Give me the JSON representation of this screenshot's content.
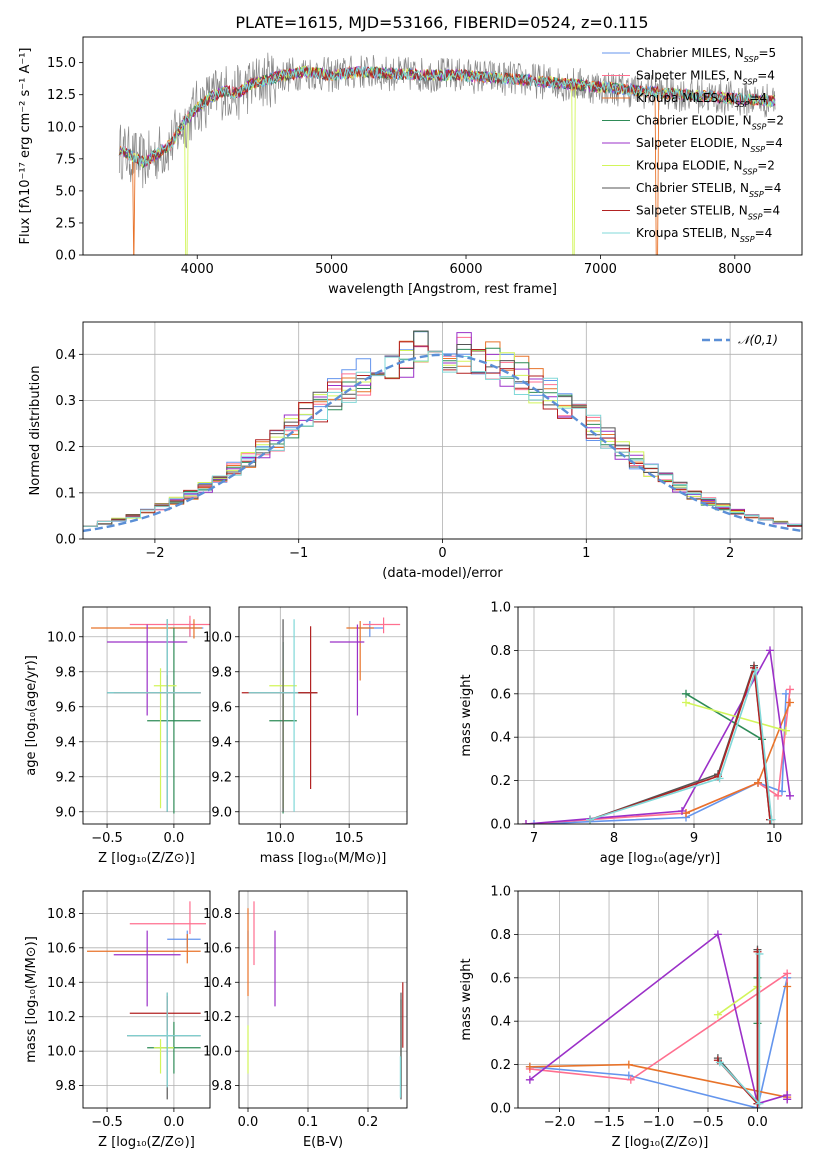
{
  "figure_title": "PLATE=1615, MJD=53166, FIBERID=0524, z=0.115",
  "colors": {
    "Chabrier MILES": "#6495ed",
    "Salpeter MILES": "#ff6f8f",
    "Kroupa MILES": "#e8732a",
    "Chabrier ELODIE": "#2e8b57",
    "Salpeter ELODIE": "#9b30c8",
    "Kroupa ELODIE": "#d2f55a",
    "Chabrier STELIB": "#555555",
    "Salpeter STELIB": "#b22222",
    "Kroupa STELIB": "#80d8d8",
    "gaussian": "#5b8fd6"
  },
  "chart_data": [
    {
      "id": "spectrum",
      "type": "line",
      "xlabel": "wavelength [Angstrom, rest frame]",
      "ylabel": "Flux [fλ10⁻¹⁷ erg cm⁻² s⁻¹ A⁻¹]",
      "xlim": [
        3150,
        8500
      ],
      "ylim": [
        0,
        17
      ],
      "xticks": [
        4000,
        5000,
        6000,
        7000,
        8000
      ],
      "yticks": [
        0.0,
        2.5,
        5.0,
        7.5,
        10.0,
        12.5,
        15.0
      ],
      "legend_position": "right",
      "legend": [
        {
          "name": "Chabrier MILES",
          "nssp": "5"
        },
        {
          "name": "Salpeter MILES",
          "nssp": "4"
        },
        {
          "name": "Kroupa MILES",
          "nssp": "4"
        },
        {
          "name": "Chabrier ELODIE",
          "nssp": "2"
        },
        {
          "name": "Salpeter ELODIE",
          "nssp": "4"
        },
        {
          "name": "Kroupa ELODIE",
          "nssp": "2"
        },
        {
          "name": "Chabrier STELIB",
          "nssp": "4"
        },
        {
          "name": "Salpeter STELIB",
          "nssp": "4"
        },
        {
          "name": "Kroupa STELIB",
          "nssp": "4"
        }
      ],
      "continuum": {
        "x": [
          3420,
          3500,
          3600,
          3700,
          3800,
          3900,
          4000,
          4100,
          4200,
          4300,
          4400,
          4500,
          4600,
          4800,
          5000,
          5200,
          5500,
          6000,
          6500,
          7000,
          7500,
          8000,
          8300
        ],
        "y": [
          8.2,
          7.8,
          7.2,
          7.9,
          8.6,
          10.3,
          11.5,
          12.3,
          12.8,
          12.6,
          13.3,
          13.6,
          13.9,
          14.3,
          14.0,
          14.3,
          14.1,
          14.0,
          13.6,
          13.1,
          12.6,
          12.2,
          12.0
        ]
      },
      "data_spectrum": {
        "x_range": [
          3420,
          8300
        ],
        "noise": 1.4
      },
      "model_drops": [
        {
          "model": "Kroupa MILES",
          "x": 3530
        },
        {
          "model": "Kroupa ELODIE",
          "x": 3920
        },
        {
          "model": "Kroupa ELODIE",
          "x": 6800
        },
        {
          "model": "Kroupa MILES",
          "x": 7420
        }
      ],
      "grid": false
    },
    {
      "id": "residuals",
      "type": "histogram",
      "xlabel": "(data-model)/error",
      "ylabel": "Normed distribution",
      "xlim": [
        -2.5,
        2.5
      ],
      "ylim": [
        0,
        0.47
      ],
      "xticks": [
        -2,
        -1,
        0,
        1,
        2
      ],
      "yticks": [
        0.0,
        0.1,
        0.2,
        0.3,
        0.4
      ],
      "bin_width": 0.1,
      "gaussian_label": "𝒩(0,1)",
      "legend_position": "top-right",
      "grid": true
    },
    {
      "id": "age_vs_Z",
      "type": "errorbar",
      "xlabel": "Z [log₁₀(Z/Z⊙)]",
      "ylabel": "age  [log₁₀(age/yr)]",
      "xlim": [
        -0.68,
        0.27
      ],
      "ylim": [
        8.93,
        10.17
      ],
      "xticks": [
        -0.5,
        0.0
      ],
      "yticks": [
        9.0,
        9.2,
        9.4,
        9.6,
        9.8,
        10.0
      ],
      "grid": true,
      "points": [
        {
          "model": "Chabrier MILES",
          "x": 0.12,
          "y": 10.05,
          "xerr": [
            0.15,
            0.1
          ],
          "yerr": [
            0.05,
            0.04
          ]
        },
        {
          "model": "Salpeter MILES",
          "x": 0.12,
          "y": 10.07,
          "xerr": [
            0.45,
            0.2
          ],
          "yerr": [
            0.07,
            0.05
          ]
        },
        {
          "model": "Kroupa MILES",
          "x": 0.15,
          "y": 10.05,
          "xerr": [
            0.77,
            0.06
          ],
          "yerr": [
            0.06,
            0.05
          ]
        },
        {
          "model": "Chabrier ELODIE",
          "x": 0.0,
          "y": 9.52,
          "xerr": [
            0.2,
            0.2
          ],
          "yerr": [
            0.53,
            0.53
          ]
        },
        {
          "model": "Salpeter ELODIE",
          "x": -0.2,
          "y": 9.97,
          "xerr": [
            0.3,
            0.3
          ],
          "yerr": [
            0.42,
            0.1
          ]
        },
        {
          "model": "Kroupa ELODIE",
          "x": -0.1,
          "y": 9.72,
          "xerr": [
            0.05,
            0.12
          ],
          "yerr": [
            0.7,
            0.1
          ]
        },
        {
          "model": "Chabrier STELIB",
          "x": -0.05,
          "y": 9.68,
          "xerr": [
            0.45,
            0.25
          ],
          "yerr": [
            0.68,
            0.42
          ]
        },
        {
          "model": "Salpeter STELIB",
          "x": -0.05,
          "y": 9.68,
          "xerr": [
            0.4,
            0.25
          ],
          "yerr": [
            0.1,
            0.1
          ]
        },
        {
          "model": "Kroupa STELIB",
          "x": -0.05,
          "y": 9.68,
          "xerr": [
            0.45,
            0.25
          ],
          "yerr": [
            0.68,
            0.42
          ]
        }
      ]
    },
    {
      "id": "age_vs_mass",
      "type": "errorbar",
      "xlabel": "mass [log₁₀(M/M⊙)]",
      "ylabel": "",
      "xlim": [
        9.7,
        10.92
      ],
      "ylim": [
        8.93,
        10.17
      ],
      "xticks": [
        10.0,
        10.5
      ],
      "yticks": [
        9.0,
        9.2,
        9.4,
        9.6,
        9.8,
        10.0
      ],
      "grid": true,
      "points": [
        {
          "model": "Chabrier MILES",
          "x": 10.65,
          "y": 10.05,
          "xerr": [
            0.1,
            0.1
          ],
          "yerr": [
            0.05,
            0.04
          ]
        },
        {
          "model": "Salpeter MILES",
          "x": 10.75,
          "y": 10.07,
          "xerr": [
            0.15,
            0.12
          ],
          "yerr": [
            0.05,
            0.04
          ]
        },
        {
          "model": "Kroupa MILES",
          "x": 10.58,
          "y": 10.05,
          "xerr": [
            0.1,
            0.1
          ],
          "yerr": [
            0.3,
            0.04
          ]
        },
        {
          "model": "Chabrier ELODIE",
          "x": 10.02,
          "y": 9.52,
          "xerr": [
            0.1,
            0.1
          ],
          "yerr": [
            0.53,
            0.45
          ]
        },
        {
          "model": "Salpeter ELODIE",
          "x": 10.56,
          "y": 9.97,
          "xerr": [
            0.2,
            0.05
          ],
          "yerr": [
            0.42,
            0.1
          ]
        },
        {
          "model": "Kroupa ELODIE",
          "x": 10.02,
          "y": 9.72,
          "xerr": [
            0.1,
            0.1
          ],
          "yerr": [
            0.7,
            0.1
          ]
        },
        {
          "model": "Chabrier STELIB",
          "x": 10.02,
          "y": 9.68,
          "xerr": [
            0.25,
            0.25
          ],
          "yerr": [
            0.68,
            0.42
          ]
        },
        {
          "model": "Salpeter STELIB",
          "x": 10.22,
          "y": 9.68,
          "xerr": [
            0.5,
            0.05
          ],
          "yerr": [
            0.55,
            0.38
          ]
        },
        {
          "model": "Kroupa STELIB",
          "x": 10.1,
          "y": 9.68,
          "xerr": [
            0.33,
            0.03
          ],
          "yerr": [
            0.68,
            0.42
          ]
        }
      ]
    },
    {
      "id": "weight_vs_age",
      "type": "line",
      "xlabel": "age  [log₁₀(age/yr)]",
      "ylabel": "mass weight",
      "xlim": [
        6.8,
        10.35
      ],
      "ylim": [
        0,
        1
      ],
      "xticks": [
        7,
        8,
        9,
        10
      ],
      "yticks": [
        0.0,
        0.2,
        0.4,
        0.6,
        0.8,
        1.0
      ],
      "grid": true,
      "series": [
        {
          "model": "Chabrier MILES",
          "x": [
            7.0,
            8.9,
            9.8,
            10.1,
            10.15
          ],
          "y": [
            0.0,
            0.03,
            0.19,
            0.15,
            0.6
          ]
        },
        {
          "model": "Salpeter MILES",
          "x": [
            6.9,
            8.9,
            9.8,
            10.05,
            10.2
          ],
          "y": [
            0.0,
            0.05,
            0.19,
            0.13,
            0.62
          ]
        },
        {
          "model": "Kroupa MILES",
          "x": [
            8.9,
            9.8,
            10.2
          ],
          "y": [
            0.05,
            0.19,
            0.56
          ]
        },
        {
          "model": "Chabrier ELODIE",
          "x": [
            8.9,
            9.85
          ],
          "y": [
            0.6,
            0.39
          ]
        },
        {
          "model": "Salpeter ELODIE",
          "x": [
            6.9,
            8.85,
            9.95,
            10.2
          ],
          "y": [
            0.0,
            0.06,
            0.8,
            0.13
          ]
        },
        {
          "model": "Kroupa ELODIE",
          "x": [
            8.9,
            10.15
          ],
          "y": [
            0.56,
            0.43
          ]
        },
        {
          "model": "Chabrier STELIB",
          "x": [
            7.7,
            9.3,
            9.75,
            9.95
          ],
          "y": [
            0.02,
            0.23,
            0.73,
            0.02
          ]
        },
        {
          "model": "Salpeter STELIB",
          "x": [
            7.7,
            9.3,
            9.75,
            9.95
          ],
          "y": [
            0.02,
            0.22,
            0.72,
            0.02
          ]
        },
        {
          "model": "Kroupa STELIB",
          "x": [
            7.7,
            9.32,
            9.77,
            9.97
          ],
          "y": [
            0.02,
            0.21,
            0.71,
            0.02
          ]
        }
      ]
    },
    {
      "id": "mass_vs_Z",
      "type": "errorbar",
      "xlabel": "Z [log₁₀(Z/Z⊙)]",
      "ylabel": "mass [log₁₀(M/M⊙)]",
      "xlim": [
        -0.68,
        0.27
      ],
      "ylim": [
        9.67,
        10.93
      ],
      "xticks": [
        -0.5,
        0.0
      ],
      "yticks": [
        9.8,
        10.0,
        10.2,
        10.4,
        10.6,
        10.8
      ],
      "grid": true,
      "points": [
        {
          "model": "Chabrier MILES",
          "x": 0.1,
          "y": 10.65,
          "xerr": [
            0.15,
            0.1
          ],
          "yerr": [
            0.05,
            0.05
          ]
        },
        {
          "model": "Salpeter MILES",
          "x": 0.12,
          "y": 10.74,
          "xerr": [
            0.45,
            0.12
          ],
          "yerr": [
            0.06,
            0.13
          ]
        },
        {
          "model": "Kroupa MILES",
          "x": 0.1,
          "y": 10.58,
          "xerr": [
            0.75,
            0.1
          ],
          "yerr": [
            0.07,
            0.1
          ]
        },
        {
          "model": "Chabrier ELODIE",
          "x": 0.0,
          "y": 10.02,
          "xerr": [
            0.2,
            0.2
          ],
          "yerr": [
            0.15,
            0.15
          ]
        },
        {
          "model": "Salpeter ELODIE",
          "x": -0.2,
          "y": 10.56,
          "xerr": [
            0.25,
            0.25
          ],
          "yerr": [
            0.3,
            0.14
          ]
        },
        {
          "model": "Kroupa ELODIE",
          "x": -0.1,
          "y": 10.02,
          "xerr": [
            0.05,
            0.1
          ],
          "yerr": [
            0.15,
            0.05
          ]
        },
        {
          "model": "Chabrier STELIB",
          "x": -0.05,
          "y": 10.09,
          "xerr": [
            0.3,
            0.25
          ],
          "yerr": [
            0.37,
            0.25
          ]
        },
        {
          "model": "Salpeter STELIB",
          "x": -0.05,
          "y": 10.22,
          "xerr": [
            0.28,
            0.25
          ],
          "yerr": [
            0.1,
            0.1
          ]
        },
        {
          "model": "Kroupa STELIB",
          "x": -0.05,
          "y": 10.09,
          "xerr": [
            0.3,
            0.25
          ],
          "yerr": [
            0.3,
            0.25
          ]
        }
      ]
    },
    {
      "id": "mass_vs_EBV",
      "type": "errorbar",
      "xlabel": "E(B-V)",
      "ylabel": "",
      "xlim": [
        -0.015,
        0.265
      ],
      "ylim": [
        9.67,
        10.93
      ],
      "xticks": [
        0.0,
        0.1,
        0.2
      ],
      "yticks": [
        9.8,
        10.0,
        10.2,
        10.4,
        10.6,
        10.8
      ],
      "grid": true,
      "points": [
        {
          "model": "Chabrier MILES",
          "x": 0.0,
          "y": 10.65,
          "yerr": [
            0.05,
            0.05
          ]
        },
        {
          "model": "Salpeter MILES",
          "x": 0.01,
          "y": 10.74,
          "yerr": [
            0.24,
            0.13
          ]
        },
        {
          "model": "Kroupa MILES",
          "x": 0.0,
          "y": 10.58,
          "yerr": [
            0.26,
            0.25
          ]
        },
        {
          "model": "Chabrier ELODIE",
          "x": 0.255,
          "y": 10.1,
          "yerr": [
            0.3,
            0.2
          ]
        },
        {
          "model": "Salpeter ELODIE",
          "x": 0.045,
          "y": 10.56,
          "yerr": [
            0.3,
            0.14
          ]
        },
        {
          "model": "Kroupa ELODIE",
          "x": 0.0,
          "y": 10.02,
          "yerr": [
            0.15,
            0.13
          ]
        },
        {
          "model": "Chabrier STELIB",
          "x": 0.255,
          "y": 10.09,
          "yerr": [
            0.37,
            0.25
          ]
        },
        {
          "model": "Salpeter STELIB",
          "x": 0.258,
          "y": 10.22,
          "yerr": [
            0.2,
            0.18
          ]
        },
        {
          "model": "Kroupa STELIB",
          "x": 0.254,
          "y": 9.85,
          "yerr": [
            0.12,
            0.12
          ]
        }
      ]
    },
    {
      "id": "weight_vs_Z",
      "type": "line",
      "xlabel": "Z [log₁₀(Z/Z⊙)]",
      "ylabel": "mass weight",
      "xlim": [
        -2.42,
        0.45
      ],
      "ylim": [
        0,
        1
      ],
      "xticks": [
        -2.0,
        -1.5,
        -1.0,
        -0.5,
        0.0
      ],
      "yticks": [
        0.0,
        0.2,
        0.4,
        0.6,
        0.8,
        1.0
      ],
      "grid": true,
      "series": [
        {
          "model": "Chabrier MILES",
          "x": [
            -2.3,
            -1.3,
            0.0,
            0.3
          ],
          "y": [
            0.19,
            0.15,
            0.0,
            0.6
          ]
        },
        {
          "model": "Salpeter MILES",
          "x": [
            -2.3,
            -1.28,
            0.3,
            0.3
          ],
          "y": [
            0.18,
            0.13,
            0.62,
            0.04
          ]
        },
        {
          "model": "Kroupa MILES",
          "x": [
            -2.3,
            -1.3,
            0.3,
            0.3
          ],
          "y": [
            0.19,
            0.2,
            0.05,
            0.56
          ]
        },
        {
          "model": "Chabrier ELODIE",
          "x": [
            0.0,
            0.0
          ],
          "y": [
            0.6,
            0.39
          ]
        },
        {
          "model": "Salpeter ELODIE",
          "x": [
            -2.3,
            -0.4,
            0.0,
            0.3,
            0.3
          ],
          "y": [
            0.13,
            0.8,
            0.02,
            0.06,
            0.04
          ]
        },
        {
          "model": "Kroupa ELODIE",
          "x": [
            -0.4,
            0.0
          ],
          "y": [
            0.43,
            0.56
          ]
        },
        {
          "model": "Chabrier STELIB",
          "x": [
            -0.4,
            0.0,
            0.0
          ],
          "y": [
            0.23,
            0.02,
            0.73
          ]
        },
        {
          "model": "Salpeter STELIB",
          "x": [
            -0.4,
            0.0,
            0.0
          ],
          "y": [
            0.22,
            0.02,
            0.72
          ]
        },
        {
          "model": "Kroupa STELIB",
          "x": [
            -0.38,
            0.02,
            0.02
          ],
          "y": [
            0.21,
            0.02,
            0.71
          ]
        }
      ]
    }
  ]
}
